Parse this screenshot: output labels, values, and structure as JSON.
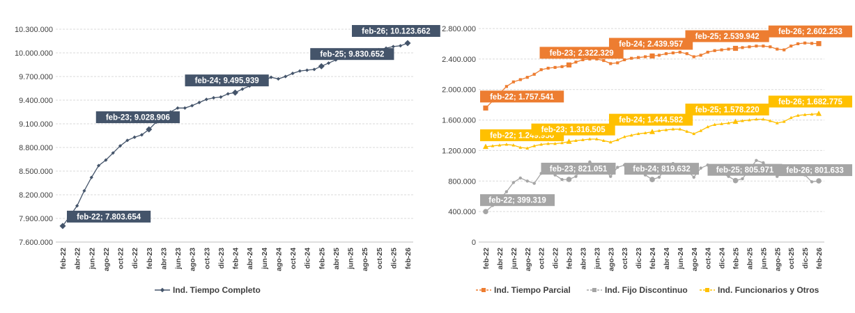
{
  "chart_data": [
    {
      "type": "line",
      "title": "",
      "xlabel": "",
      "ylabel": "",
      "ylim": [
        7600000,
        10300000
      ],
      "yticks": [
        "7.600.000",
        "7.900.000",
        "8.200.000",
        "8.500.000",
        "8.800.000",
        "9.100.000",
        "9.400.000",
        "9.700.000",
        "10.000.000",
        "10.300.000"
      ],
      "xticks": [
        "feb-22",
        "abr-22",
        "jun-22",
        "ago-22",
        "oct-22",
        "dic-22",
        "feb-23",
        "abr-23",
        "jun-23",
        "ago-23",
        "oct-23",
        "dic-23",
        "feb-24",
        "abr-24",
        "jun-24",
        "ago-24",
        "oct-24",
        "dic-24",
        "feb-25",
        "abr-25",
        "jun-25",
        "ago-25",
        "oct-25",
        "dic-25",
        "feb-26"
      ],
      "series": [
        {
          "name": "Ind. Tiempo Completo",
          "color": "#44546A",
          "values": [
            7803654,
            7930000,
            8060000,
            8250000,
            8420000,
            8570000,
            8640000,
            8730000,
            8820000,
            8890000,
            8930000,
            8960000,
            9028906,
            9120000,
            9200000,
            9250000,
            9300000,
            9300000,
            9330000,
            9370000,
            9410000,
            9430000,
            9440000,
            9480000,
            9495939,
            9540000,
            9580000,
            9620000,
            9650000,
            9690000,
            9670000,
            9700000,
            9740000,
            9770000,
            9780000,
            9790000,
            9830652,
            9870000,
            9910000,
            9950000,
            9980000,
            9990000,
            10000000,
            10020000,
            10040000,
            10060000,
            10080000,
            10090000,
            10123662
          ],
          "labels": [
            {
              "index": 0,
              "text": "feb-22; 7.803.654"
            },
            {
              "index": 12,
              "text": "feb-23; 9.028.906"
            },
            {
              "index": 24,
              "text": "feb-24; 9.495.939"
            },
            {
              "index": 36,
              "text": "feb-25; 9.830.652"
            },
            {
              "index": 48,
              "text": "feb-26; 10.123.662"
            }
          ]
        }
      ]
    },
    {
      "type": "line",
      "title": "",
      "xlabel": "",
      "ylabel": "",
      "ylim": [
        0,
        2800000
      ],
      "yticks": [
        "0",
        "400.000",
        "800.000",
        "1.200.000",
        "1.600.000",
        "2.000.000",
        "2.400.000",
        "2.800.000"
      ],
      "xticks": [
        "feb-22",
        "abr-22",
        "jun-22",
        "ago-22",
        "oct-22",
        "dic-22",
        "feb-23",
        "abr-23",
        "jun-23",
        "ago-23",
        "oct-23",
        "dic-23",
        "feb-24",
        "abr-24",
        "jun-24",
        "ago-24",
        "oct-24",
        "dic-24",
        "feb-25",
        "abr-25",
        "jun-25",
        "ago-25",
        "oct-25",
        "dic-25",
        "feb-26"
      ],
      "series": [
        {
          "name": "Ind. Tiempo Parcial",
          "color": "#ED7D31",
          "values": [
            1757541,
            1850000,
            1950000,
            2040000,
            2100000,
            2130000,
            2160000,
            2200000,
            2260000,
            2280000,
            2290000,
            2300000,
            2322329,
            2360000,
            2390000,
            2400000,
            2400000,
            2380000,
            2340000,
            2350000,
            2390000,
            2410000,
            2420000,
            2430000,
            2439957,
            2450000,
            2470000,
            2480000,
            2490000,
            2470000,
            2430000,
            2450000,
            2490000,
            2510000,
            2520000,
            2530000,
            2539942,
            2550000,
            2560000,
            2570000,
            2570000,
            2560000,
            2530000,
            2520000,
            2570000,
            2600000,
            2610000,
            2605000,
            2602253
          ],
          "labels": [
            {
              "index": 0,
              "text": "feb-22; 1.757.541"
            },
            {
              "index": 12,
              "text": "feb-23; 2.322.329"
            },
            {
              "index": 24,
              "text": "feb-24; 2.439.957"
            },
            {
              "index": 36,
              "text": "feb-25; 2.539.942"
            },
            {
              "index": 48,
              "text": "feb-26; 2.602.253"
            }
          ]
        },
        {
          "name": "Ind. Fijo Discontinuo",
          "color": "#A5A5A5",
          "values": [
            399319,
            480000,
            560000,
            660000,
            780000,
            840000,
            800000,
            770000,
            900000,
            940000,
            880000,
            820000,
            821051,
            860000,
            980000,
            1050000,
            1000000,
            960000,
            860000,
            980000,
            1010000,
            960000,
            920000,
            880000,
            819632,
            850000,
            980000,
            1030000,
            990000,
            940000,
            850000,
            970000,
            1010000,
            960000,
            900000,
            860000,
            805971,
            830000,
            950000,
            1070000,
            1040000,
            960000,
            860000,
            960000,
            1000000,
            950000,
            880000,
            790000,
            801633
          ],
          "labels": [
            {
              "index": 0,
              "text": "feb-22; 399.319"
            },
            {
              "index": 12,
              "text": "feb-23; 821.051"
            },
            {
              "index": 24,
              "text": "feb-24; 819.632"
            },
            {
              "index": 36,
              "text": "feb-25; 805.971"
            },
            {
              "index": 48,
              "text": "feb-26; 801.633"
            }
          ]
        },
        {
          "name": "Ind. Funcionarios y Otros",
          "color": "#FFC000",
          "values": [
            1249956,
            1260000,
            1270000,
            1280000,
            1270000,
            1240000,
            1230000,
            1260000,
            1280000,
            1290000,
            1290000,
            1300000,
            1316505,
            1330000,
            1340000,
            1350000,
            1350000,
            1330000,
            1310000,
            1340000,
            1380000,
            1400000,
            1420000,
            1430000,
            1444582,
            1460000,
            1470000,
            1480000,
            1480000,
            1450000,
            1420000,
            1460000,
            1510000,
            1540000,
            1550000,
            1560000,
            1578220,
            1590000,
            1600000,
            1610000,
            1610000,
            1590000,
            1560000,
            1580000,
            1630000,
            1660000,
            1670000,
            1675000,
            1682775
          ],
          "labels": [
            {
              "index": 0,
              "text": "feb-22; 1.249.956"
            },
            {
              "index": 12,
              "text": "feb-23; 1.316.505"
            },
            {
              "index": 24,
              "text": "feb-24; 1.444.582"
            },
            {
              "index": 36,
              "text": "feb-25; 1.578.220"
            },
            {
              "index": 48,
              "text": "feb-26; 1.682.775"
            }
          ]
        }
      ]
    }
  ]
}
